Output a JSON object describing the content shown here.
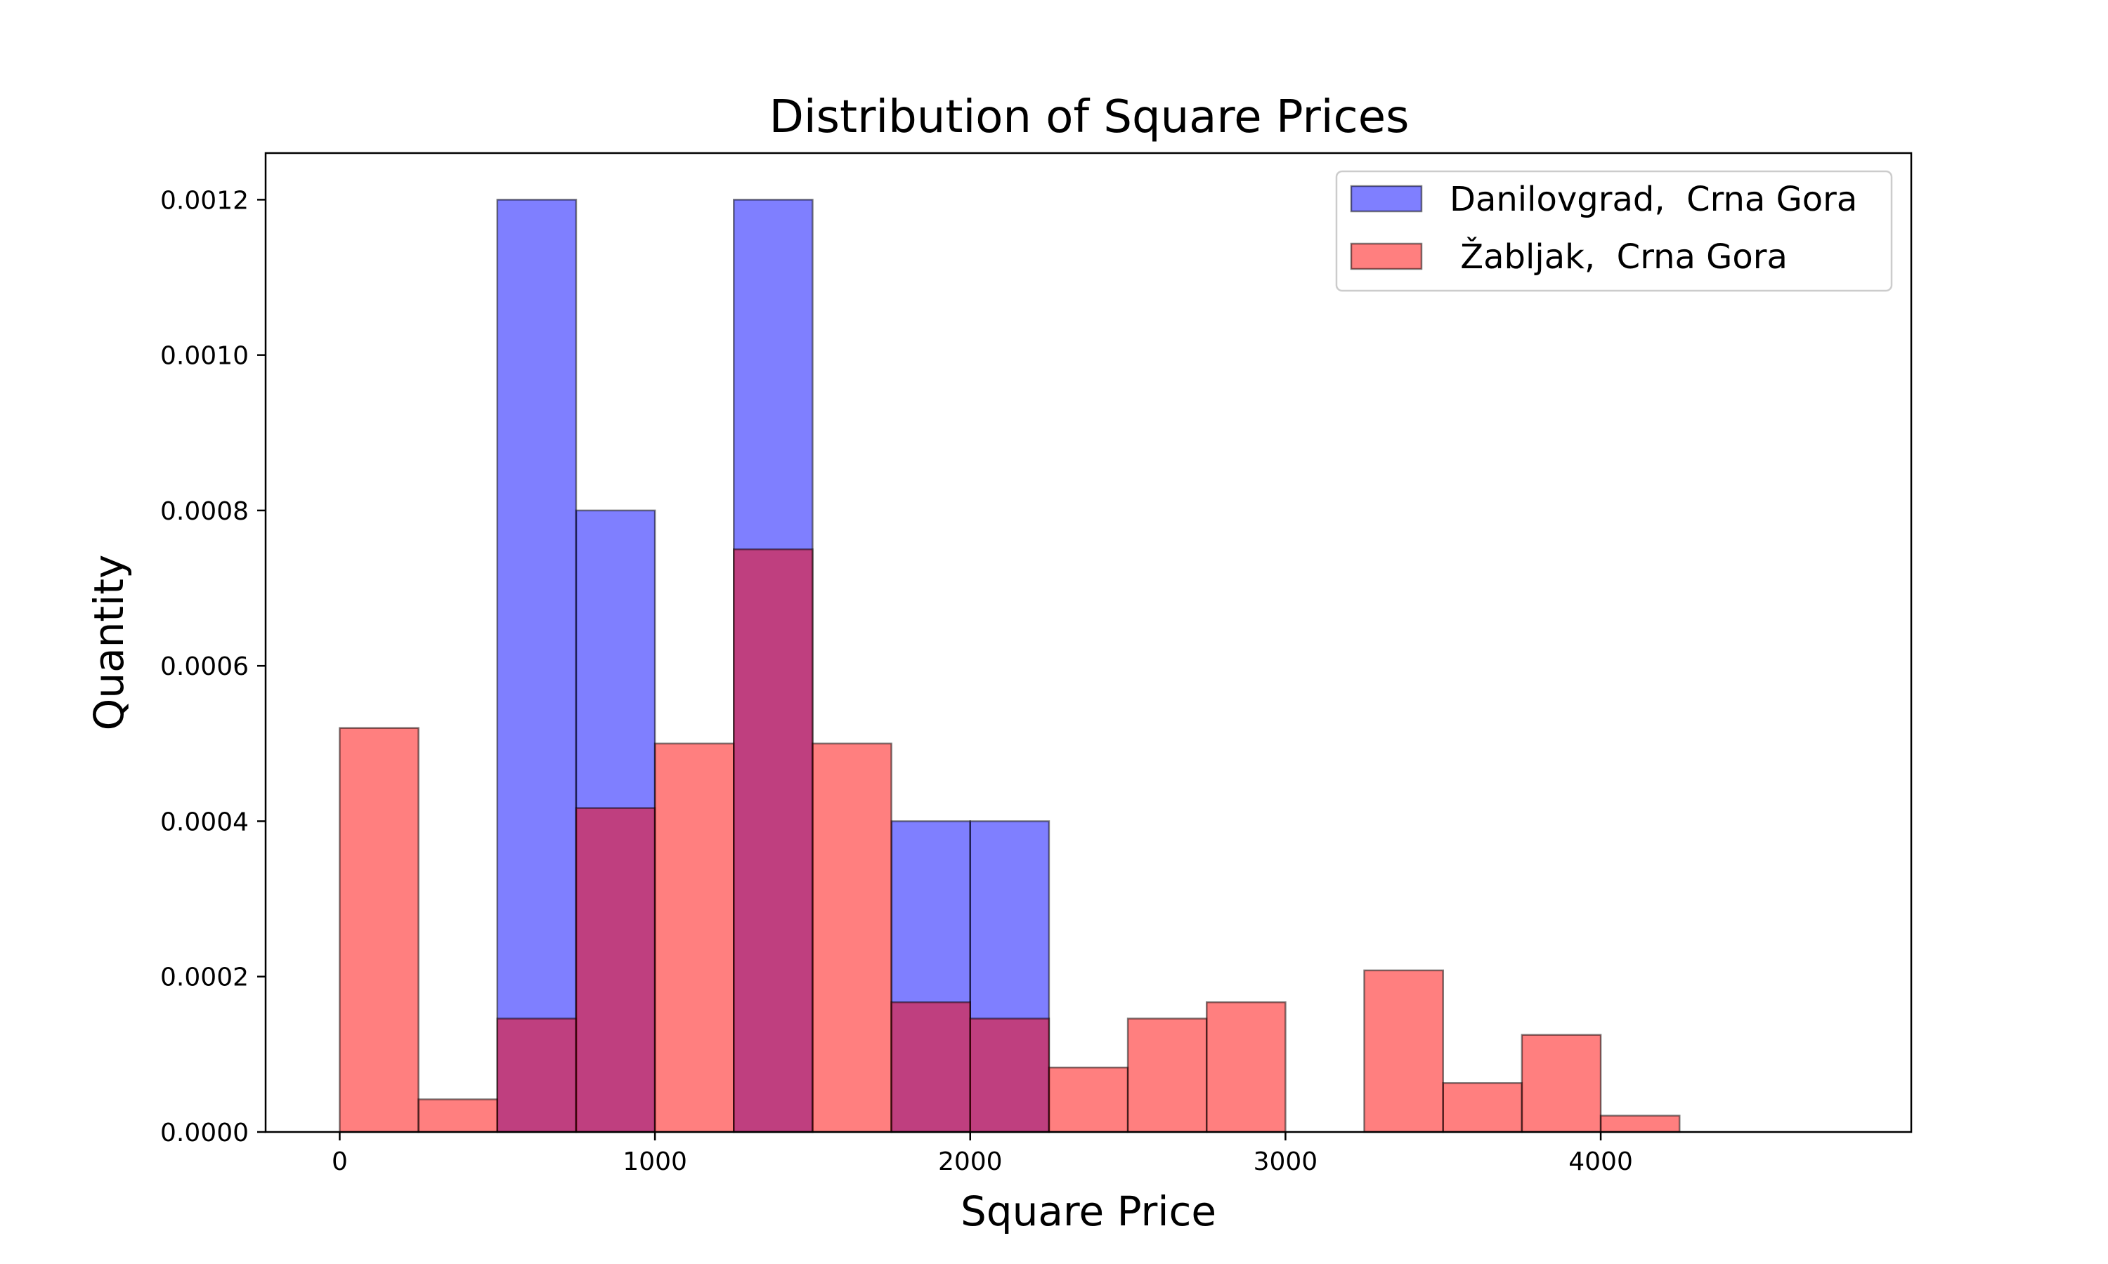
{
  "chart_data": {
    "type": "bar",
    "title": "Distribution of Square Prices",
    "xlabel": "Square Price",
    "ylabel": "Quantity",
    "xlim": [
      -235,
      4985
    ],
    "ylim": [
      0,
      0.00126
    ],
    "xticks": [
      0,
      1000,
      2000,
      3000,
      4000
    ],
    "xtick_labels": [
      "0",
      "1000",
      "2000",
      "3000",
      "4000"
    ],
    "yticks": [
      0,
      0.0002,
      0.0004,
      0.0006,
      0.0008,
      0.001,
      0.0012
    ],
    "ytick_labels": [
      "0.0000",
      "0.0002",
      "0.0004",
      "0.0006",
      "0.0008",
      "0.0010",
      "0.0012"
    ],
    "bin_edges": [
      0,
      250,
      500,
      750,
      1000,
      1250,
      1500,
      1750,
      2000,
      2250,
      2500,
      2750,
      3000,
      3250,
      3500,
      3750,
      4000,
      4250,
      4500,
      4750
    ],
    "legend_position": "top-right",
    "grid": false,
    "series": [
      {
        "name": "Danilovgrad,  Crna Gora",
        "color": "#0000ff",
        "values": [
          0,
          0,
          0.0012,
          0.0008,
          0,
          0.0012,
          0,
          0.0004,
          0.0004,
          0,
          0,
          0,
          0,
          0,
          0,
          0,
          0,
          0,
          0
        ]
      },
      {
        "name": " Žabljak,  Crna Gora",
        "color": "#ff0000",
        "values": [
          0.00052,
          4.2e-05,
          0.000146,
          0.000417,
          0.0005,
          0.00075,
          0.0005,
          0.000167,
          0.000146,
          8.3e-05,
          0.000146,
          0.000167,
          0,
          0.000208,
          6.3e-05,
          0.000125,
          2.1e-05,
          0,
          0
        ]
      }
    ]
  }
}
